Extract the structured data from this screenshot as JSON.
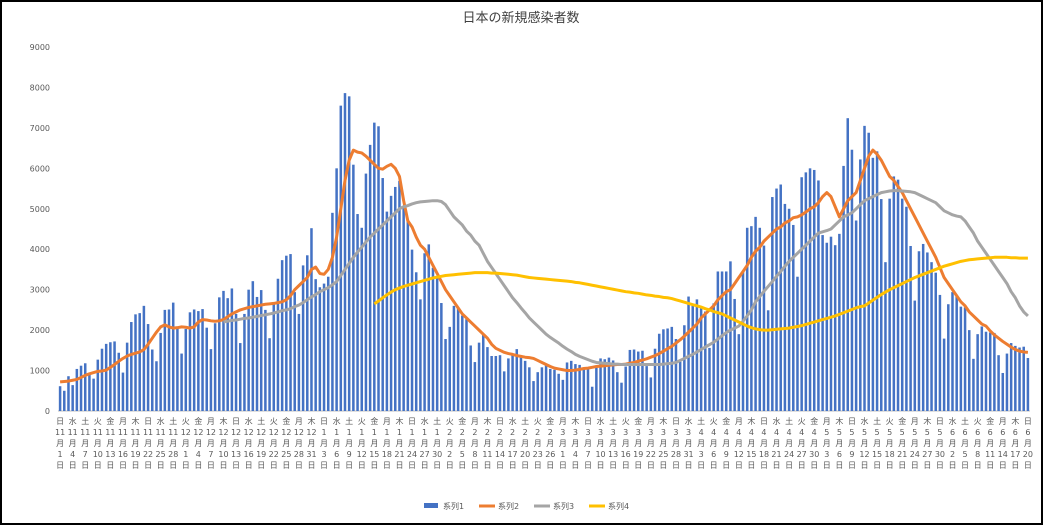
{
  "chart_data": {
    "type": "bar-line",
    "title": "日本の新規感染者数",
    "categories": [
      "日11月1日",
      null,
      null,
      "水11月4日",
      null,
      null,
      "土11月7日",
      null,
      null,
      "火11月10日",
      null,
      null,
      "金11月13日",
      null,
      null,
      "月11月16日",
      null,
      null,
      "木11月19日",
      null,
      null,
      "日11月22日",
      null,
      null,
      "水11月25日",
      null,
      null,
      "土11月28日",
      null,
      null,
      "火12月1日",
      null,
      null,
      "金12月4日",
      null,
      null,
      "月12月7日",
      null,
      null,
      "木12月10日",
      null,
      null,
      "日12月13日",
      null,
      null,
      "水12月16日",
      null,
      null,
      "土12月19日",
      null,
      null,
      "火12月22日",
      null,
      null,
      "金12月25日",
      null,
      null,
      "月12月28日",
      null,
      null,
      "木12月31日",
      null,
      null,
      "日1月3日",
      null,
      null,
      "水1月6日",
      null,
      null,
      "土1月9日",
      null,
      null,
      "火1月12日",
      null,
      null,
      "金1月15日",
      null,
      null,
      "月1月18日",
      null,
      null,
      "木1月21日",
      null,
      null,
      "日1月24日",
      null,
      null,
      "水1月27日",
      null,
      null,
      "土1月30日",
      null,
      null,
      "火2月2日",
      null,
      null,
      "金2月5日",
      null,
      null,
      "月2月8日",
      null,
      null,
      "木2月11日",
      null,
      null,
      "日2月14日",
      null,
      null,
      "水2月17日",
      null,
      null,
      "土2月20日",
      null,
      null,
      "火2月23日",
      null,
      null,
      "金2月26日",
      null,
      null,
      "月3月1日",
      null,
      null,
      "木3月4日",
      null,
      null,
      "日3月7日",
      null,
      null,
      "水3月10日",
      null,
      null,
      "土3月13日",
      null,
      null,
      "火3月16日",
      null,
      null,
      "金3月19日",
      null,
      null,
      "月3月22日",
      null,
      null,
      "木3月25日",
      null,
      null,
      "日3月28日",
      null,
      null,
      "水3月31日",
      null,
      null,
      "土4月3日",
      null,
      null,
      "火4月6日",
      null,
      null,
      "金4月9日",
      null,
      null,
      "月4月12日",
      null,
      null,
      "木4月15日",
      null,
      null,
      "日4月18日",
      null,
      null,
      "水4月21日",
      null,
      null,
      "土4月24日",
      null,
      null,
      "火4月27日",
      null,
      null,
      "金4月30日",
      null,
      null,
      "月5月3日",
      null,
      null,
      "木5月6日",
      null,
      null,
      "日5月9日",
      null,
      null,
      "水5月12日",
      null,
      null,
      "土5月15日",
      null,
      null,
      "火5月18日",
      null,
      null,
      "金5月21日",
      null,
      null,
      "月5月24日",
      null,
      null,
      "木5月27日",
      null,
      null,
      "日5月30日",
      null,
      null,
      "水6月2日",
      null,
      null,
      "土6月5日",
      null,
      null,
      "火6月8日",
      null,
      null,
      "金6月11日",
      null,
      null,
      "月6月14日",
      null,
      null,
      "木6月17日",
      null,
      null,
      "日6月20日"
    ],
    "series": [
      {
        "name": "系列1",
        "kind": "bar",
        "color": "#4472c4",
        "values": [
          613,
          500,
          860,
          640,
          1040,
          1120,
          1180,
          920,
          800,
          1270,
          1540,
          1660,
          1700,
          1720,
          1440,
          950,
          1690,
          2200,
          2390,
          2420,
          2600,
          2150,
          1520,
          1230,
          1930,
          2500,
          2510,
          2680,
          2040,
          1420,
          2030,
          2440,
          2510,
          2470,
          2520,
          2060,
          1530,
          2170,
          2810,
          2970,
          2790,
          3030,
          2400,
          1680,
          2400,
          3000,
          3210,
          2820,
          2990,
          2500,
          1800,
          2650,
          3270,
          3730,
          3840,
          3880,
          2940,
          2400,
          3600,
          3850,
          4520,
          3260,
          3060,
          3150,
          3320,
          4900,
          6000,
          7550,
          7860,
          7780,
          6090,
          4870,
          4530,
          5870,
          6580,
          7130,
          7040,
          5760,
          4930,
          5320,
          5540,
          5690,
          5040,
          4710,
          3990,
          3430,
          2760,
          3900,
          4120,
          3540,
          3340,
          2670,
          1780,
          2080,
          2600,
          2560,
          2360,
          2270,
          1620,
          1210,
          1690,
          1880,
          1580,
          1360,
          1360,
          1380,
          980,
          1300,
          1420,
          1530,
          1320,
          1240,
          1080,
          740,
          960,
          1080,
          1170,
          1040,
          1020,
          920,
          770,
          1200,
          1240,
          1160,
          1140,
          1060,
          1070,
          600,
          1120,
          1300,
          1280,
          1320,
          1250,
          960,
          700,
          1100,
          1510,
          1520,
          1470,
          1490,
          1110,
          830,
          1540,
          1910,
          2020,
          2040,
          2080,
          1780,
          1220,
          2120,
          2830,
          2600,
          2760,
          2540,
          2460,
          1560,
          2660,
          3450,
          3450,
          3450,
          3700,
          2770,
          1900,
          3460,
          4530,
          4570,
          4800,
          4530,
          4090,
          2490,
          5290,
          5500,
          5600,
          5120,
          5000,
          4600,
          3320,
          5780,
          5900,
          6000,
          5960,
          5700,
          4350,
          4160,
          4310,
          4100,
          4380,
          6060,
          7240,
          6460,
          4710,
          6220,
          7050,
          6880,
          6260,
          6420,
          5240,
          3680,
          5250,
          5800,
          5720,
          5250,
          5050,
          4080,
          2730,
          3950,
          4130,
          3920,
          3680,
          3420,
          2870,
          1790,
          2640,
          2940,
          2830,
          2580,
          2560,
          2000,
          1290,
          1900,
          2090,
          1960,
          1940,
          1930,
          1380,
          940,
          1420,
          1680,
          1610,
          1570,
          1590,
          1310
        ]
      },
      {
        "name": "系列2",
        "kind": "line",
        "color": "#ed7d31",
        "values": [
          720,
          730,
          740,
          760,
          780,
          830,
          880,
          920,
          950,
          980,
          990,
          1010,
          1080,
          1150,
          1230,
          1300,
          1360,
          1400,
          1430,
          1460,
          1520,
          1650,
          1800,
          1950,
          2080,
          2130,
          2080,
          2050,
          2060,
          2080,
          2070,
          2050,
          2080,
          2200,
          2260,
          2250,
          2230,
          2220,
          2230,
          2260,
          2330,
          2400,
          2450,
          2500,
          2530,
          2560,
          2580,
          2600,
          2620,
          2640,
          2650,
          2660,
          2680,
          2700,
          2750,
          2850,
          3000,
          3100,
          3200,
          3300,
          3500,
          3560,
          3400,
          3380,
          3500,
          3800,
          4300,
          5000,
          5700,
          6200,
          6450,
          6400,
          6380,
          6300,
          6200,
          6100,
          6000,
          5980,
          6050,
          6100,
          6000,
          5800,
          5200,
          4700,
          4550,
          4300,
          4100,
          4000,
          3800,
          3600,
          3400,
          3200,
          3000,
          2850,
          2700,
          2550,
          2400,
          2300,
          2200,
          2100,
          2000,
          1900,
          1800,
          1650,
          1550,
          1500,
          1450,
          1420,
          1400,
          1370,
          1350,
          1330,
          1320,
          1300,
          1250,
          1200,
          1150,
          1100,
          1060,
          1040,
          1020,
          1000,
          1000,
          1010,
          1030,
          1050,
          1060,
          1080,
          1100,
          1110,
          1120,
          1130,
          1140,
          1150,
          1150,
          1160,
          1180,
          1200,
          1230,
          1260,
          1290,
          1330,
          1370,
          1420,
          1480,
          1540,
          1600,
          1680,
          1760,
          1850,
          1950,
          2050,
          2150,
          2300,
          2400,
          2500,
          2600,
          2750,
          2850,
          2950,
          3000,
          3150,
          3300,
          3450,
          3600,
          3800,
          3950,
          4050,
          4200,
          4300,
          4400,
          4500,
          4550,
          4650,
          4700,
          4780,
          4800,
          4850,
          4920,
          5000,
          5050,
          5150,
          5300,
          5400,
          5300,
          5050,
          4800,
          5000,
          5200,
          5300,
          5400,
          5700,
          6000,
          6300,
          6450,
          6350,
          6200,
          6000,
          5800,
          5700,
          5550,
          5400,
          5200,
          5000,
          4800,
          4600,
          4400,
          4200,
          4000,
          3800,
          3550,
          3300,
          3150,
          3000,
          2850,
          2700,
          2600,
          2450,
          2350,
          2250,
          2150,
          2100,
          1980,
          1880,
          1800,
          1720,
          1650,
          1580,
          1520,
          1480,
          1460,
          1450
        ]
      },
      {
        "name": "系列3",
        "kind": "line",
        "color": "#a5a5a5",
        "values": [
          null,
          null,
          null,
          null,
          null,
          null,
          null,
          null,
          null,
          null,
          null,
          null,
          null,
          null,
          null,
          null,
          null,
          null,
          null,
          null,
          null,
          null,
          null,
          null,
          null,
          null,
          null,
          null,
          null,
          null,
          null,
          null,
          null,
          null,
          null,
          null,
          null,
          null,
          null,
          2200,
          2220,
          2240,
          2250,
          2270,
          2290,
          2300,
          2320,
          2340,
          2360,
          2380,
          2400,
          2420,
          2450,
          2480,
          2500,
          2530,
          2580,
          2620,
          2680,
          2750,
          2820,
          2880,
          2950,
          3000,
          3050,
          3120,
          3200,
          3350,
          3500,
          3650,
          3800,
          3930,
          4050,
          4180,
          4300,
          4400,
          4500,
          4600,
          4700,
          4800,
          4900,
          5000,
          5050,
          5080,
          5120,
          5150,
          5170,
          5180,
          5190,
          5200,
          5200,
          5180,
          5100,
          4950,
          4800,
          4700,
          4600,
          4450,
          4350,
          4200,
          4100,
          3900,
          3700,
          3550,
          3400,
          3250,
          3100,
          2950,
          2800,
          2680,
          2550,
          2430,
          2300,
          2200,
          2100,
          2000,
          1900,
          1820,
          1750,
          1680,
          1600,
          1530,
          1470,
          1400,
          1350,
          1310,
          1270,
          1230,
          1200,
          1190,
          1180,
          1170,
          1160,
          1160,
          1150,
          1150,
          1150,
          1150,
          1150,
          1150,
          1150,
          1150,
          1150,
          1150,
          1160,
          1170,
          1180,
          1200,
          1250,
          1300,
          1350,
          1400,
          1460,
          1520,
          1580,
          1640,
          1700,
          1780,
          1860,
          1940,
          2000,
          2050,
          2100,
          2220,
          2350,
          2500,
          2700,
          2830,
          2960,
          3080,
          3200,
          3330,
          3450,
          3580,
          3700,
          3800,
          3900,
          4000,
          4100,
          4200,
          4300,
          4400,
          4430,
          4460,
          4500,
          4600,
          4700,
          4800,
          4850,
          4900,
          5000,
          5100,
          5200,
          5250,
          5300,
          5350,
          5400,
          5420,
          5440,
          5450,
          5450,
          5440,
          5430,
          5420,
          5400,
          5350,
          5300,
          5250,
          5200,
          5150,
          5050,
          4950,
          4900,
          4850,
          4820,
          4800,
          4700,
          4550,
          4400,
          4200,
          4050,
          3900,
          3750,
          3600,
          3450,
          3300,
          3150,
          2950,
          2800,
          2600,
          2450,
          2350
        ]
      },
      {
        "name": "系列4",
        "kind": "line",
        "color": "#ffc000",
        "values": [
          null,
          null,
          null,
          null,
          null,
          null,
          null,
          null,
          null,
          null,
          null,
          null,
          null,
          null,
          null,
          null,
          null,
          null,
          null,
          null,
          null,
          null,
          null,
          null,
          null,
          null,
          null,
          null,
          null,
          null,
          null,
          null,
          null,
          null,
          null,
          null,
          null,
          null,
          null,
          null,
          null,
          null,
          null,
          null,
          null,
          null,
          null,
          null,
          null,
          null,
          null,
          null,
          null,
          null,
          null,
          null,
          null,
          null,
          null,
          null,
          null,
          null,
          null,
          null,
          null,
          null,
          null,
          null,
          null,
          null,
          null,
          null,
          null,
          null,
          null,
          2650,
          2720,
          2800,
          2870,
          2940,
          3000,
          3040,
          3080,
          3110,
          3140,
          3170,
          3200,
          3230,
          3260,
          3290,
          3310,
          3330,
          3350,
          3360,
          3370,
          3380,
          3390,
          3400,
          3410,
          3420,
          3420,
          3420,
          3420,
          3410,
          3410,
          3400,
          3390,
          3380,
          3370,
          3360,
          3340,
          3320,
          3300,
          3290,
          3280,
          3270,
          3260,
          3250,
          3240,
          3230,
          3220,
          3210,
          3200,
          3180,
          3170,
          3150,
          3130,
          3110,
          3090,
          3070,
          3050,
          3030,
          3010,
          2990,
          2970,
          2950,
          2940,
          2920,
          2910,
          2890,
          2870,
          2860,
          2840,
          2830,
          2810,
          2800,
          2780,
          2750,
          2720,
          2690,
          2660,
          2630,
          2600,
          2570,
          2530,
          2500,
          2460,
          2430,
          2400,
          2350,
          2300,
          2250,
          2200,
          2150,
          2100,
          2060,
          2030,
          2010,
          2000,
          2000,
          2010,
          2020,
          2030,
          2040,
          2050,
          2070,
          2090,
          2110,
          2140,
          2170,
          2200,
          2230,
          2260,
          2290,
          2320,
          2350,
          2390,
          2430,
          2470,
          2510,
          2550,
          2580,
          2600,
          2670,
          2740,
          2810,
          2880,
          2940,
          3000,
          3050,
          3100,
          3150,
          3200,
          3250,
          3300,
          3340,
          3380,
          3420,
          3460,
          3500,
          3540,
          3580,
          3610,
          3640,
          3670,
          3700,
          3720,
          3740,
          3750,
          3760,
          3770,
          3780,
          3790,
          3800,
          3800,
          3800,
          3800,
          3790,
          3790,
          3780,
          3780,
          3780
        ]
      }
    ],
    "ylim": [
      0,
      9000
    ],
    "yticks": [
      0,
      1000,
      2000,
      3000,
      4000,
      5000,
      6000,
      7000,
      8000,
      9000
    ],
    "grid": false,
    "legend": "bottom"
  }
}
